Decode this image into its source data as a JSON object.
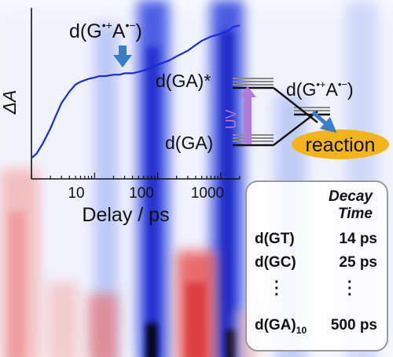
{
  "chart": {
    "y_label": "ΔA",
    "x_label": "Delay / ps",
    "x_ticks": [
      "10",
      "100",
      "1000"
    ],
    "annotation": {
      "main": "d(G",
      "sup1": "•+",
      "mid": "A",
      "sup2": "•−",
      "end": ")"
    },
    "line_color": "#1a2bd6"
  },
  "chart_data": {
    "type": "line",
    "x_scale": "log",
    "xlabel": "Delay / ps",
    "ylabel": "ΔA",
    "xlim": [
      1,
      2000
    ],
    "ylim": [
      0,
      1
    ],
    "series": [
      {
        "x": [
          1,
          1.2,
          1.5,
          2,
          2.5,
          3,
          4,
          5,
          6,
          8,
          10,
          12,
          15,
          20,
          25,
          30,
          40,
          50,
          60,
          80,
          100,
          150,
          200,
          300,
          400,
          500,
          700,
          1000,
          1300,
          1600,
          2000
        ],
        "y": [
          0.02,
          0.05,
          0.12,
          0.23,
          0.33,
          0.41,
          0.49,
          0.54,
          0.56,
          0.58,
          0.59,
          0.6,
          0.6,
          0.61,
          0.61,
          0.62,
          0.62,
          0.63,
          0.64,
          0.66,
          0.68,
          0.71,
          0.74,
          0.78,
          0.82,
          0.85,
          0.88,
          0.9,
          0.92,
          0.95,
          0.96
        ]
      }
    ]
  },
  "energy": {
    "upper_label": "d(GA)*",
    "lower_label": "d(GA)",
    "uv_label": "UV",
    "cs_label": {
      "main": "d(G",
      "sup1": "•+",
      "mid": "A",
      "sup2": "•−",
      "end": ")"
    },
    "reaction_label": "reaction",
    "uv_color": "#b07ad6",
    "reaction_fill": "#f2b31c",
    "arrow_color": "#3a7ec8"
  },
  "decay_table": {
    "header_line1": "Decay",
    "header_line2": "Time",
    "rows": [
      {
        "sample": "d(GT)",
        "time": "14 ps"
      },
      {
        "sample": "d(GC)",
        "time": "25 ps"
      }
    ],
    "last_row": {
      "sample": "d(GA)",
      "subscript": "10",
      "time": "500 ps"
    }
  }
}
